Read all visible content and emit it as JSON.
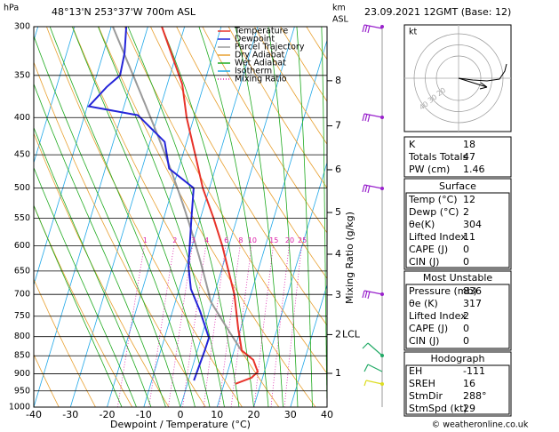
{
  "header": {
    "location": "48°13'N  253°37'W  700m  ASL",
    "datetime": "23.09.2021 12GMT (Base: 12)",
    "credit": "© weatheronline.co.uk"
  },
  "chart_data": {
    "type": "skewt",
    "y_label": "hPa",
    "y2_label": [
      "km",
      "ASL"
    ],
    "x_label": "Dewpoint / Temperature (°C)",
    "mixing_ratio_label": "Mixing Ratio (g/kg)",
    "lcl_label": "LCL",
    "xlim": [
      -40,
      40
    ],
    "xticks": [
      -40,
      -30,
      -20,
      -10,
      0,
      10,
      20,
      30,
      40
    ],
    "ylim": [
      1000,
      300
    ],
    "yticks": [
      300,
      350,
      400,
      450,
      500,
      550,
      600,
      650,
      700,
      750,
      800,
      850,
      900,
      950,
      1000
    ],
    "log_y": true,
    "y2ticks": [
      1,
      2,
      3,
      4,
      5,
      6,
      7,
      8
    ],
    "mixing_ratios": [
      1,
      2,
      3,
      4,
      6,
      8,
      10,
      15,
      20,
      25
    ],
    "series": [
      {
        "name": "Temperature",
        "color": "#e8332a",
        "pressure": [
          929,
          911,
          894,
          861,
          836,
          781,
          700,
          600,
          549,
          500,
          451,
          400,
          360,
          300
        ],
        "values": [
          13.1,
          17.0,
          18.2,
          16.0,
          12.1,
          9.4,
          5.5,
          -1.8,
          -6.5,
          -11.8,
          -16.5,
          -22.0,
          -25.9,
          -36.2
        ]
      },
      {
        "name": "Dewpoint",
        "color": "#2424d8",
        "pressure": [
          919,
          836,
          803,
          738,
          688,
          641,
          557,
          500,
          470,
          432,
          397,
          386,
          363,
          350,
          326,
          300
        ],
        "values": [
          1.5,
          2.0,
          2.1,
          -2.5,
          -6.8,
          -9.3,
          -12.2,
          -14.3,
          -22.6,
          -26.0,
          -35.5,
          -49.6,
          -46.3,
          -43.6,
          -44.2,
          -45.9
        ]
      }
    ],
    "reference_lines": [
      {
        "name": "Parcel Trajectory",
        "color": "#9a9a9a"
      },
      {
        "name": "Dry Adiabat",
        "color": "#e8a030"
      },
      {
        "name": "Wet Adiabat",
        "color": "#1faa1f"
      },
      {
        "name": "Isotherm",
        "color": "#20a8e8"
      },
      {
        "name": "Mixing Ratio",
        "color": "#dd22aa"
      }
    ]
  },
  "indices": {
    "rows": [
      [
        "K",
        18
      ],
      [
        "Totals Totals",
        47
      ],
      [
        "PW (cm)",
        1.46
      ]
    ]
  },
  "surface": {
    "title": "Surface",
    "rows": [
      [
        "Temp (°C)",
        12
      ],
      [
        "Dewp (°C)",
        2
      ],
      [
        "θe(K)",
        304
      ],
      [
        "Lifted Index",
        11
      ],
      [
        "CAPE (J)",
        0
      ],
      [
        "CIN (J)",
        0
      ]
    ]
  },
  "most_unstable": {
    "title": "Most Unstable",
    "rows": [
      [
        "Pressure (mb)",
        836
      ],
      [
        "θe (K)",
        317
      ],
      [
        "Lifted Index",
        2
      ],
      [
        "CAPE (J)",
        0
      ],
      [
        "CIN (J)",
        0
      ]
    ]
  },
  "hodograph": {
    "title": "Hodograph",
    "unit": "kt",
    "rings": [
      20,
      30,
      40
    ],
    "rows": [
      [
        "EH",
        -111
      ],
      [
        "SREH",
        16
      ],
      [
        "StmDir",
        "288°"
      ],
      [
        "StmSpd (kt)",
        29
      ]
    ]
  }
}
